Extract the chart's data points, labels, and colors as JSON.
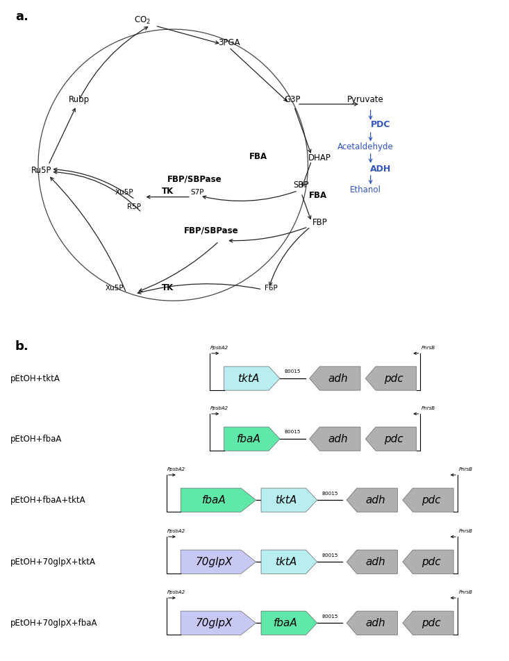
{
  "panel_a_label": "a.",
  "panel_b_label": "b.",
  "blue_color": "#3355bb",
  "arrow_color": "#222222",
  "constructs": [
    {
      "label": "pEtOH+tktA",
      "genes_left": [
        {
          "name": "tktA",
          "color": "#b8eef0",
          "italic": true,
          "wide": false
        }
      ],
      "genes_right": [
        {
          "name": "adh",
          "color": "#b0b0b0",
          "italic": true
        },
        {
          "name": "pdc",
          "color": "#b0b0b0",
          "italic": true
        }
      ],
      "promoter_left": "PpsbA2",
      "promoter_right": "PnrsB"
    },
    {
      "label": "pEtOH+fbaA",
      "genes_left": [
        {
          "name": "fbaA",
          "color": "#60e8a8",
          "italic": true,
          "wide": false
        }
      ],
      "genes_right": [
        {
          "name": "adh",
          "color": "#b0b0b0",
          "italic": true
        },
        {
          "name": "pdc",
          "color": "#b0b0b0",
          "italic": true
        }
      ],
      "promoter_left": "PpsbA2",
      "promoter_right": "PnrsB"
    },
    {
      "label": "pEtOH+fbaA+tktA",
      "genes_left": [
        {
          "name": "fbaA",
          "color": "#60e8a8",
          "italic": true,
          "wide": true
        },
        {
          "name": "tktA",
          "color": "#b8eef0",
          "italic": true,
          "wide": false
        }
      ],
      "genes_right": [
        {
          "name": "adh",
          "color": "#b0b0b0",
          "italic": true
        },
        {
          "name": "pdc",
          "color": "#b0b0b0",
          "italic": true
        }
      ],
      "promoter_left": "PpsbA2",
      "promoter_right": "PnrsB"
    },
    {
      "label": "pEtOH+70glpX+tktA",
      "genes_left": [
        {
          "name": "70glpX",
          "color": "#c8c8f4",
          "italic": true,
          "wide": true
        },
        {
          "name": "tktA",
          "color": "#b8eef0",
          "italic": true,
          "wide": false
        }
      ],
      "genes_right": [
        {
          "name": "adh",
          "color": "#b0b0b0",
          "italic": true
        },
        {
          "name": "pdc",
          "color": "#b0b0b0",
          "italic": true
        }
      ],
      "promoter_left": "PpsbA2",
      "promoter_right": "PnrsB"
    },
    {
      "label": "pEtOH+70glpX+fbaA",
      "genes_left": [
        {
          "name": "70glpX",
          "color": "#c8c8f4",
          "italic": true,
          "wide": true
        },
        {
          "name": "fbaA",
          "color": "#60e8a8",
          "italic": true,
          "wide": false
        }
      ],
      "genes_right": [
        {
          "name": "adh",
          "color": "#b0b0b0",
          "italic": true
        },
        {
          "name": "pdc",
          "color": "#b0b0b0",
          "italic": true
        }
      ],
      "promoter_left": "PpsbA2",
      "promoter_right": "PnrsB"
    }
  ]
}
